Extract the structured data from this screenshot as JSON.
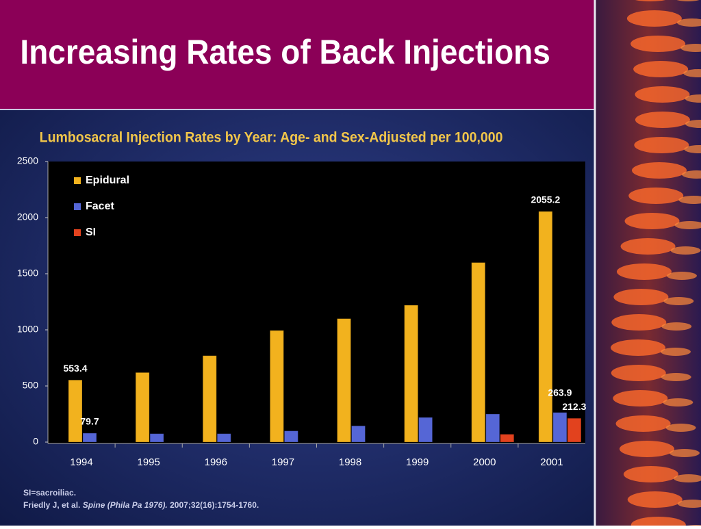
{
  "header": {
    "title": "Increasing Rates of Back Injections"
  },
  "chart_data": {
    "type": "bar",
    "title": "Lumbosacral Injection Rates by Year: Age- and Sex-Adjusted per 100,000",
    "categories": [
      "1994",
      "1995",
      "1996",
      "1997",
      "1998",
      "1999",
      "2000",
      "2001"
    ],
    "series": [
      {
        "name": "Epidural",
        "color": "#f2b21e",
        "values": [
          553.4,
          620,
          770,
          995,
          1100,
          1220,
          1600,
          2055.2
        ],
        "value_labels": [
          "553.4",
          null,
          null,
          null,
          null,
          null,
          null,
          "2055.2"
        ]
      },
      {
        "name": "Facet",
        "color": "#5566d6",
        "values": [
          79.7,
          75,
          75,
          100,
          145,
          220,
          250,
          263.9
        ],
        "value_labels": [
          "79.7",
          null,
          null,
          null,
          null,
          null,
          null,
          "263.9"
        ]
      },
      {
        "name": "SI",
        "color": "#e2421e",
        "values": [
          null,
          null,
          null,
          null,
          null,
          null,
          70,
          212.3
        ],
        "value_labels": [
          null,
          null,
          null,
          null,
          null,
          null,
          null,
          "212.3"
        ]
      }
    ],
    "ylim": [
      0,
      2500
    ],
    "yticks": [
      0,
      500,
      1000,
      1500,
      2000,
      2500
    ],
    "legend": "upper left"
  },
  "footnote": {
    "line1": "SI=sacroiliac.",
    "authors": "Friedly J, et al.",
    "journal": "Spine (Phila Pa 1976).",
    "details": "2007;32(16):1754-1760."
  }
}
